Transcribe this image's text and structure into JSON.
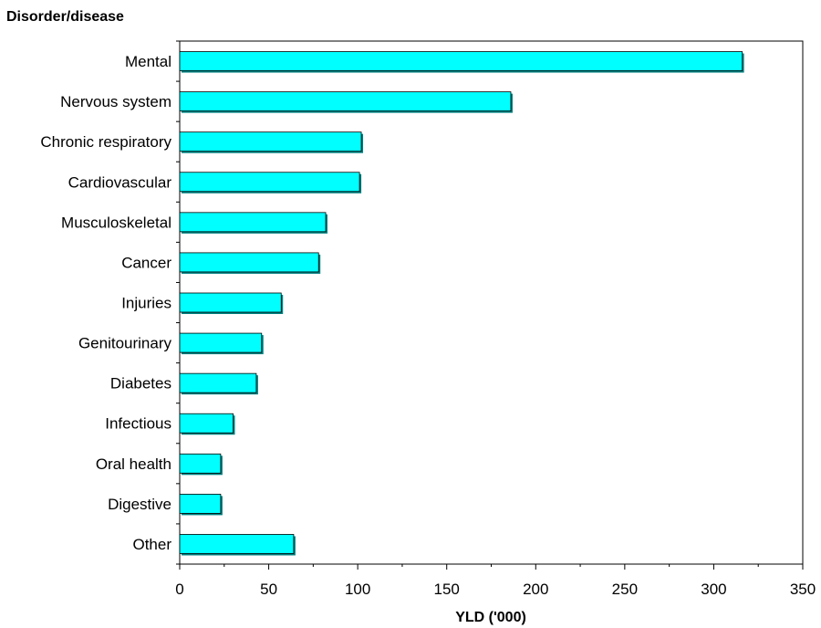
{
  "chart_data": {
    "type": "bar",
    "orientation": "horizontal",
    "title": "Disorder/disease",
    "xlabel": "YLD ('000)",
    "ylabel": "",
    "categories": [
      "Mental",
      "Nervous system",
      "Chronic respiratory",
      "Cardiovascular",
      "Musculoskeletal",
      "Cancer",
      "Injuries",
      "Genitourinary",
      "Diabetes",
      "Infectious",
      "Oral health",
      "Digestive",
      "Other"
    ],
    "values": [
      316,
      186,
      102,
      101,
      82,
      78,
      57,
      46,
      43,
      30,
      23,
      23,
      64
    ],
    "xlim": [
      0,
      350
    ],
    "xticks": [
      0,
      50,
      100,
      150,
      200,
      250,
      300,
      350
    ],
    "xtick_labels": [
      "0",
      "50",
      "100",
      "150",
      "200",
      "250",
      "300",
      "350"
    ],
    "grid": false,
    "bar_color": "#00FFFF",
    "bar_shadow_color": "#008080"
  }
}
